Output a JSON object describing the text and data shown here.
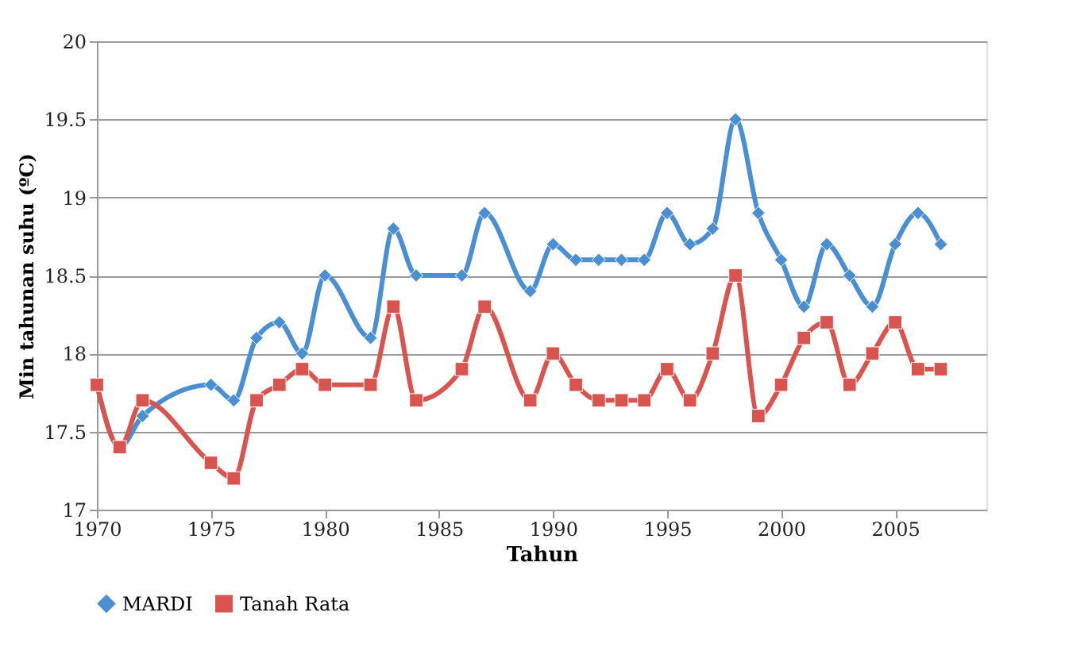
{
  "chart_data": {
    "type": "line",
    "xlabel": "Tahun",
    "ylabel": "Min tahunan suhu (ºC)",
    "x": [
      1970,
      1971,
      1972,
      1975,
      1976,
      1977,
      1978,
      1979,
      1980,
      1982,
      1983,
      1984,
      1986,
      1987,
      1989,
      1990,
      1991,
      1992,
      1993,
      1994,
      1995,
      1996,
      1997,
      1998,
      1999,
      2000,
      2001,
      2002,
      2003,
      2004,
      2005,
      2006,
      2007
    ],
    "series": [
      {
        "name": "MARDI",
        "color": "#4a8ed4",
        "marker": "diamond",
        "values": [
          17.8,
          17.4,
          17.6,
          17.8,
          17.7,
          18.1,
          18.2,
          18.0,
          18.5,
          18.1,
          18.8,
          18.5,
          18.5,
          18.9,
          18.4,
          18.7,
          18.6,
          18.6,
          18.6,
          18.6,
          18.9,
          18.7,
          18.8,
          19.5,
          18.9,
          18.6,
          18.3,
          18.7,
          18.5,
          18.3,
          18.7,
          18.9,
          18.7
        ]
      },
      {
        "name": "Tanah Rata",
        "color": "#d9534f",
        "marker": "square",
        "values": [
          17.8,
          17.4,
          17.7,
          17.3,
          17.2,
          17.7,
          17.8,
          17.9,
          17.8,
          17.8,
          18.3,
          17.7,
          17.9,
          18.3,
          17.7,
          18.0,
          17.8,
          17.7,
          17.7,
          17.7,
          17.9,
          17.7,
          18.0,
          18.5,
          17.6,
          17.8,
          18.1,
          18.2,
          17.8,
          18.0,
          18.2,
          17.9,
          17.9
        ]
      }
    ],
    "xlim": [
      1970,
      2009
    ],
    "xticks": [
      1970,
      1975,
      1980,
      1985,
      1990,
      1995,
      2000,
      2005
    ],
    "ylim": [
      17,
      20
    ],
    "yticks": [
      17,
      17.5,
      18,
      18.5,
      19,
      19.5,
      20
    ],
    "grid": "y",
    "legend": "bottom",
    "line_style": "solid"
  }
}
